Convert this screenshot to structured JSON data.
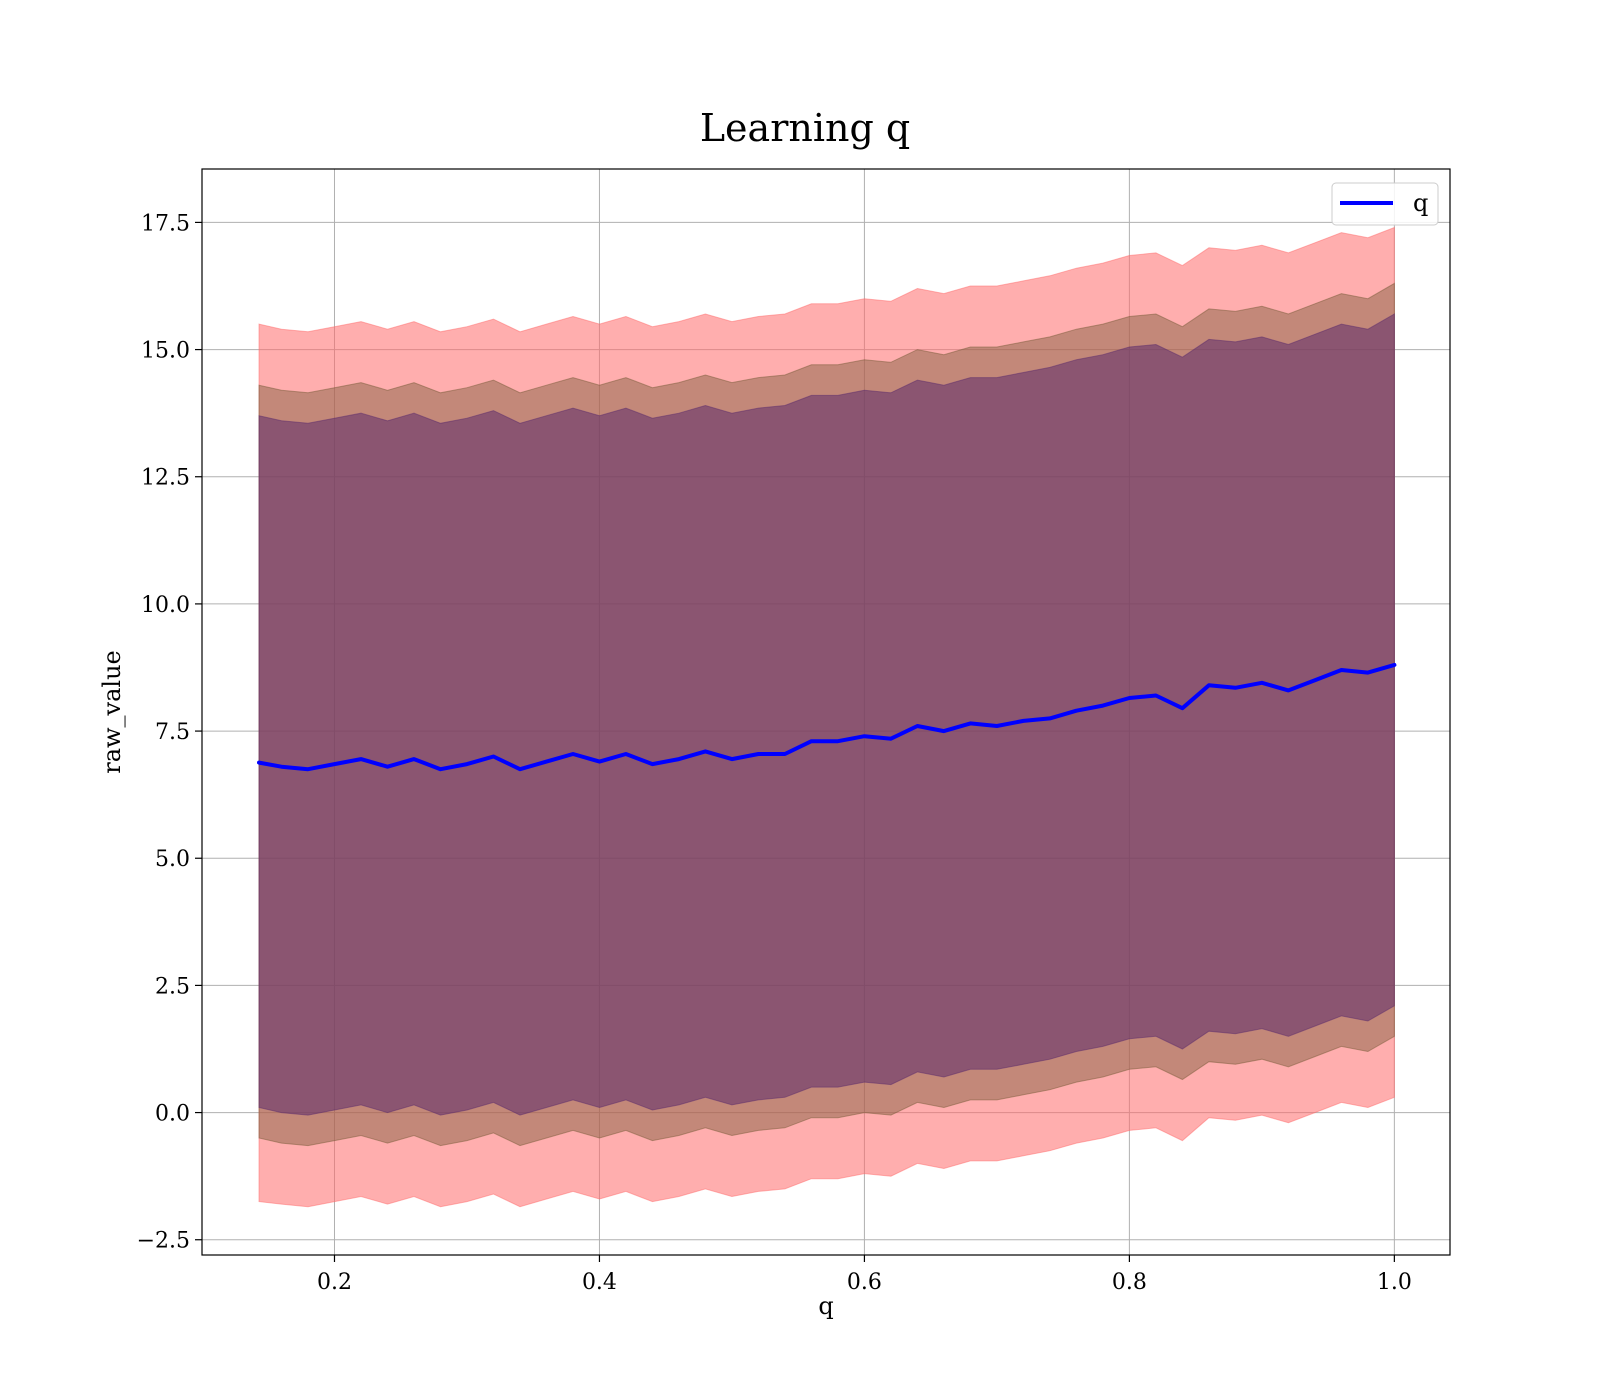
{
  "chart_data": {
    "type": "line",
    "title": "Learning q",
    "xlabel": "q",
    "ylabel": "raw_value",
    "xlim": [
      0.1,
      1.042
    ],
    "ylim": [
      -2.8,
      18.55
    ],
    "xticks": [
      0.2,
      0.4,
      0.6,
      0.8,
      1.0
    ],
    "xtick_labels": [
      "0.2",
      "0.4",
      "0.6",
      "0.8",
      "1.0"
    ],
    "yticks": [
      -2.5,
      0.0,
      2.5,
      5.0,
      7.5,
      10.0,
      12.5,
      15.0,
      17.5
    ],
    "ytick_labels": [
      "−2.5",
      "0.0",
      "2.5",
      "5.0",
      "7.5",
      "10.0",
      "12.5",
      "15.0",
      "17.5"
    ],
    "grid": true,
    "legend": {
      "placement": "upper right",
      "entries": [
        "q"
      ]
    },
    "x": [
      0.143,
      0.16,
      0.18,
      0.2,
      0.22,
      0.24,
      0.26,
      0.28,
      0.3,
      0.32,
      0.34,
      0.36,
      0.38,
      0.4,
      0.42,
      0.44,
      0.46,
      0.48,
      0.5,
      0.52,
      0.54,
      0.56,
      0.58,
      0.6,
      0.62,
      0.64,
      0.66,
      0.68,
      0.7,
      0.72,
      0.74,
      0.76,
      0.78,
      0.8,
      0.82,
      0.84,
      0.86,
      0.88,
      0.9,
      0.92,
      0.94,
      0.96,
      0.98,
      1.0
    ],
    "mean": [
      6.88,
      6.8,
      6.75,
      6.85,
      6.95,
      6.8,
      6.95,
      6.75,
      6.85,
      7.0,
      6.75,
      6.9,
      7.05,
      6.9,
      7.05,
      6.85,
      6.95,
      7.1,
      6.95,
      7.05,
      7.05,
      7.3,
      7.3,
      7.4,
      7.35,
      7.6,
      7.5,
      7.65,
      7.6,
      7.7,
      7.75,
      7.9,
      8.0,
      8.15,
      8.2,
      7.95,
      8.4,
      8.35,
      8.45,
      8.3,
      8.5,
      8.7,
      8.65,
      8.8
    ],
    "series": [
      {
        "name": "q",
        "values": [
          6.88,
          6.8,
          6.75,
          6.85,
          6.95,
          6.8,
          6.95,
          6.75,
          6.85,
          7.0,
          6.75,
          6.9,
          7.05,
          6.9,
          7.05,
          6.85,
          6.95,
          7.1,
          6.95,
          7.05,
          7.05,
          7.3,
          7.3,
          7.4,
          7.35,
          7.6,
          7.5,
          7.65,
          7.6,
          7.7,
          7.75,
          7.9,
          8.0,
          8.15,
          8.2,
          7.95,
          8.4,
          8.35,
          8.45,
          8.3,
          8.5,
          8.7,
          8.65,
          8.8
        ],
        "color": "#0000ff"
      }
    ],
    "bands": [
      {
        "color": "#ff6b6b",
        "opacity": 0.55,
        "upper": [
          15.5,
          15.4,
          15.35,
          15.45,
          15.55,
          15.4,
          15.55,
          15.35,
          15.45,
          15.6,
          15.35,
          15.5,
          15.65,
          15.5,
          15.65,
          15.45,
          15.55,
          15.7,
          15.55,
          15.65,
          15.7,
          15.9,
          15.9,
          16.0,
          15.95,
          16.2,
          16.1,
          16.25,
          16.25,
          16.35,
          16.45,
          16.6,
          16.7,
          16.85,
          16.9,
          16.65,
          17.0,
          16.95,
          17.05,
          16.9,
          17.1,
          17.3,
          17.2,
          17.4
        ],
        "lower": [
          -1.75,
          -1.8,
          -1.85,
          -1.75,
          -1.65,
          -1.8,
          -1.65,
          -1.85,
          -1.75,
          -1.6,
          -1.85,
          -1.7,
          -1.55,
          -1.7,
          -1.55,
          -1.75,
          -1.65,
          -1.5,
          -1.65,
          -1.55,
          -1.5,
          -1.3,
          -1.3,
          -1.2,
          -1.25,
          -1.0,
          -1.1,
          -0.95,
          -0.95,
          -0.85,
          -0.75,
          -0.6,
          -0.5,
          -0.35,
          -0.3,
          -0.55,
          -0.1,
          -0.15,
          -0.05,
          -0.2,
          0.0,
          0.2,
          0.1,
          0.3
        ]
      },
      {
        "color": "#7a5c3a",
        "opacity": 0.45,
        "upper": [
          14.3,
          14.2,
          14.15,
          14.25,
          14.35,
          14.2,
          14.35,
          14.15,
          14.25,
          14.4,
          14.15,
          14.3,
          14.45,
          14.3,
          14.45,
          14.25,
          14.35,
          14.5,
          14.35,
          14.45,
          14.5,
          14.7,
          14.7,
          14.8,
          14.75,
          15.0,
          14.9,
          15.05,
          15.05,
          15.15,
          15.25,
          15.4,
          15.5,
          15.65,
          15.7,
          15.45,
          15.8,
          15.75,
          15.85,
          15.7,
          15.9,
          16.1,
          16.0,
          16.3
        ],
        "lower": [
          -0.5,
          -0.6,
          -0.65,
          -0.55,
          -0.45,
          -0.6,
          -0.45,
          -0.65,
          -0.55,
          -0.4,
          -0.65,
          -0.5,
          -0.35,
          -0.5,
          -0.35,
          -0.55,
          -0.45,
          -0.3,
          -0.45,
          -0.35,
          -0.3,
          -0.1,
          -0.1,
          0.0,
          -0.05,
          0.2,
          0.1,
          0.25,
          0.25,
          0.35,
          0.45,
          0.6,
          0.7,
          0.85,
          0.9,
          0.65,
          1.0,
          0.95,
          1.05,
          0.9,
          1.1,
          1.3,
          1.2,
          1.5
        ]
      },
      {
        "color": "#5c2b6b",
        "opacity": 0.55,
        "upper": [
          13.7,
          13.6,
          13.55,
          13.65,
          13.75,
          13.6,
          13.75,
          13.55,
          13.65,
          13.8,
          13.55,
          13.7,
          13.85,
          13.7,
          13.85,
          13.65,
          13.75,
          13.9,
          13.75,
          13.85,
          13.9,
          14.1,
          14.1,
          14.2,
          14.15,
          14.4,
          14.3,
          14.45,
          14.45,
          14.55,
          14.65,
          14.8,
          14.9,
          15.05,
          15.1,
          14.85,
          15.2,
          15.15,
          15.25,
          15.1,
          15.3,
          15.5,
          15.4,
          15.7
        ],
        "lower": [
          0.1,
          0.0,
          -0.05,
          0.05,
          0.15,
          0.0,
          0.15,
          -0.05,
          0.05,
          0.2,
          -0.05,
          0.1,
          0.25,
          0.1,
          0.25,
          0.05,
          0.15,
          0.3,
          0.15,
          0.25,
          0.3,
          0.5,
          0.5,
          0.6,
          0.55,
          0.8,
          0.7,
          0.85,
          0.85,
          0.95,
          1.05,
          1.2,
          1.3,
          1.45,
          1.5,
          1.25,
          1.6,
          1.55,
          1.65,
          1.5,
          1.7,
          1.9,
          1.8,
          2.1
        ]
      }
    ]
  }
}
